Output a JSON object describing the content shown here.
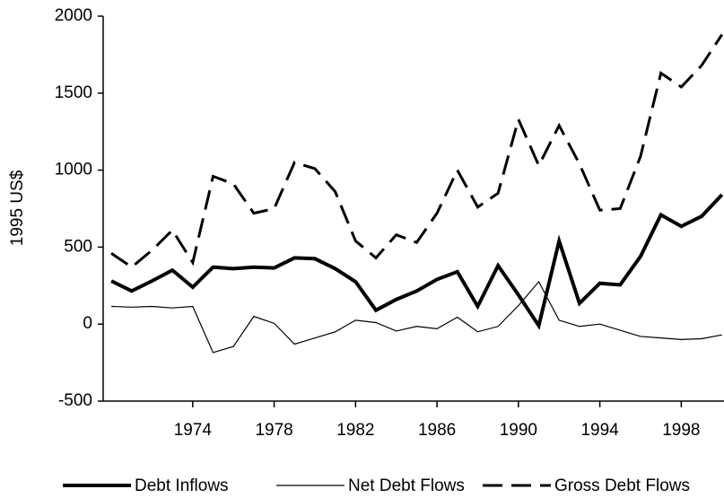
{
  "chart_data": {
    "type": "line",
    "y_label": "1995 US$",
    "x": [
      1970,
      1971,
      1972,
      1973,
      1974,
      1975,
      1976,
      1977,
      1978,
      1979,
      1980,
      1981,
      1982,
      1983,
      1984,
      1985,
      1986,
      1987,
      1988,
      1989,
      1990,
      1991,
      1992,
      1993,
      1994,
      1995,
      1996,
      1997,
      1998,
      1999,
      2000
    ],
    "series": [
      {
        "name": "Debt Inflows",
        "color": "#000000",
        "width": 4,
        "dash": "none",
        "values": [
          280,
          215,
          280,
          350,
          240,
          370,
          360,
          370,
          365,
          430,
          425,
          360,
          275,
          90,
          160,
          215,
          290,
          340,
          115,
          380,
          190,
          -10,
          540,
          135,
          265,
          255,
          440,
          710,
          635,
          700,
          840
        ]
      },
      {
        "name": "Net Debt Flows",
        "color": "#000000",
        "width": 1.2,
        "dash": "none",
        "values": [
          115,
          110,
          115,
          105,
          115,
          -185,
          -145,
          50,
          5,
          -130,
          -90,
          -50,
          25,
          10,
          -45,
          -15,
          -30,
          45,
          -50,
          -15,
          120,
          275,
          25,
          -15,
          0,
          -40,
          -80,
          -90,
          -100,
          -95,
          -70
        ]
      },
      {
        "name": "Gross Debt Flows",
        "color": "#000000",
        "width": 3,
        "dash": "22 10",
        "values": [
          460,
          370,
          480,
          610,
          400,
          960,
          910,
          720,
          750,
          1050,
          1010,
          860,
          540,
          430,
          580,
          530,
          720,
          1000,
          760,
          850,
          1330,
          1030,
          1290,
          1040,
          740,
          750,
          1090,
          1630,
          1540,
          1680,
          1880
        ]
      }
    ],
    "xlim": [
      1969.6,
      2000.1
    ],
    "xticks": [
      1974,
      1978,
      1982,
      1986,
      1990,
      1994,
      1998
    ],
    "ylim": [
      -500,
      2000
    ],
    "yticks": [
      -500,
      0,
      500,
      1000,
      1500,
      2000
    ],
    "grid": false,
    "legend": "bottom"
  }
}
